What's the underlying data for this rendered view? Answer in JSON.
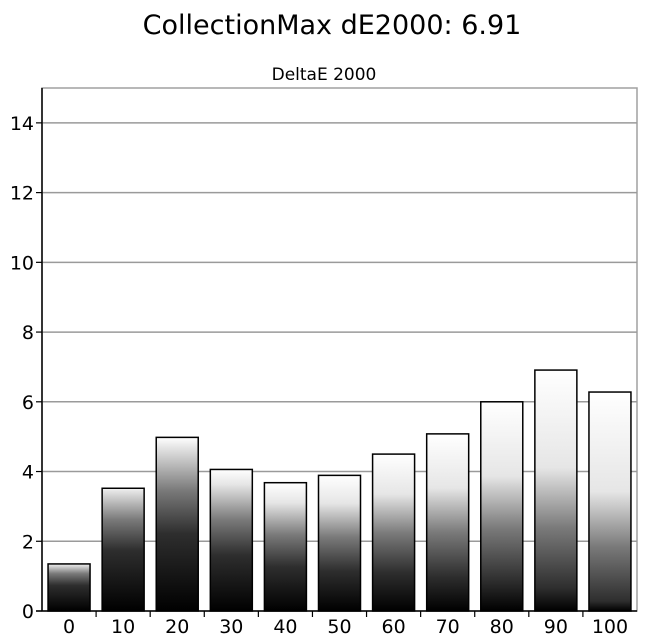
{
  "chart_data": {
    "type": "bar",
    "title": "CollectionMax dE2000: 6.91",
    "subtitle": "DeltaE 2000",
    "xlabel": "",
    "ylabel": "",
    "categories": [
      "0",
      "10",
      "20",
      "30",
      "40",
      "50",
      "60",
      "70",
      "80",
      "90",
      "100"
    ],
    "values": [
      1.35,
      3.52,
      4.98,
      4.06,
      3.68,
      3.89,
      4.5,
      5.08,
      6.0,
      6.91,
      6.28
    ],
    "ylim": [
      0,
      15
    ],
    "yticks": [
      "0",
      "2",
      "4",
      "6",
      "8",
      "10",
      "12",
      "14"
    ],
    "grid": true,
    "legend": "none",
    "colors": {
      "bar_top": "#ffffff",
      "bar_bottom": "#000000",
      "gridline": "#9a9a9a",
      "frame": "#a0a0a0",
      "bar_outline": "#000000"
    }
  }
}
